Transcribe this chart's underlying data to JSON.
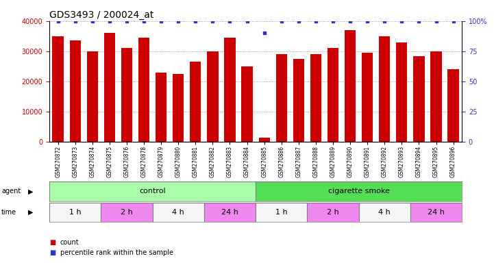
{
  "title": "GDS3493 / 200024_at",
  "samples": [
    "GSM270872",
    "GSM270873",
    "GSM270874",
    "GSM270875",
    "GSM270876",
    "GSM270878",
    "GSM270879",
    "GSM270880",
    "GSM270881",
    "GSM270882",
    "GSM270883",
    "GSM270884",
    "GSM270885",
    "GSM270886",
    "GSM270887",
    "GSM270888",
    "GSM270889",
    "GSM270890",
    "GSM270891",
    "GSM270892",
    "GSM270893",
    "GSM270894",
    "GSM270895",
    "GSM270896"
  ],
  "counts": [
    35000,
    33500,
    30000,
    36000,
    31000,
    34500,
    23000,
    22500,
    26500,
    30000,
    34500,
    25000,
    1500,
    29000,
    27500,
    29000,
    31000,
    37000,
    29500,
    35000,
    33000,
    28500,
    30000,
    24000
  ],
  "percentile_ranks": [
    100,
    100,
    100,
    100,
    100,
    100,
    100,
    100,
    100,
    100,
    100,
    100,
    90,
    100,
    100,
    100,
    100,
    100,
    100,
    100,
    100,
    100,
    100,
    100
  ],
  "bar_color": "#cc0000",
  "dot_color": "#3333cc",
  "ylim_left": [
    0,
    40000
  ],
  "ylim_right": [
    0,
    100
  ],
  "yticks_left": [
    0,
    10000,
    20000,
    30000,
    40000
  ],
  "ytick_labels_left": [
    "0",
    "10000",
    "20000",
    "30000",
    "40000"
  ],
  "yticks_right": [
    0,
    25,
    50,
    75,
    100
  ],
  "ytick_labels_right": [
    "0",
    "25",
    "50",
    "75",
    "100%"
  ],
  "agent_groups": [
    {
      "label": "control",
      "start": 0,
      "end": 12,
      "color": "#aaffaa"
    },
    {
      "label": "cigarette smoke",
      "start": 12,
      "end": 24,
      "color": "#55dd55"
    }
  ],
  "time_groups": [
    {
      "label": "1 h",
      "start": 0,
      "end": 3,
      "color": "#f5f5f5"
    },
    {
      "label": "2 h",
      "start": 3,
      "end": 6,
      "color": "#ee88ee"
    },
    {
      "label": "4 h",
      "start": 6,
      "end": 9,
      "color": "#f5f5f5"
    },
    {
      "label": "24 h",
      "start": 9,
      "end": 12,
      "color": "#ee88ee"
    },
    {
      "label": "1 h",
      "start": 12,
      "end": 15,
      "color": "#f5f5f5"
    },
    {
      "label": "2 h",
      "start": 15,
      "end": 18,
      "color": "#ee88ee"
    },
    {
      "label": "4 h",
      "start": 18,
      "end": 21,
      "color": "#f5f5f5"
    },
    {
      "label": "24 h",
      "start": 21,
      "end": 24,
      "color": "#ee88ee"
    }
  ],
  "background_color": "#ffffff",
  "grid_color": "#888888",
  "title_fontsize": 10,
  "tick_fontsize": 7,
  "bar_tick_fontsize": 5.5,
  "row_label_fontsize": 7,
  "row_text_fontsize": 8
}
